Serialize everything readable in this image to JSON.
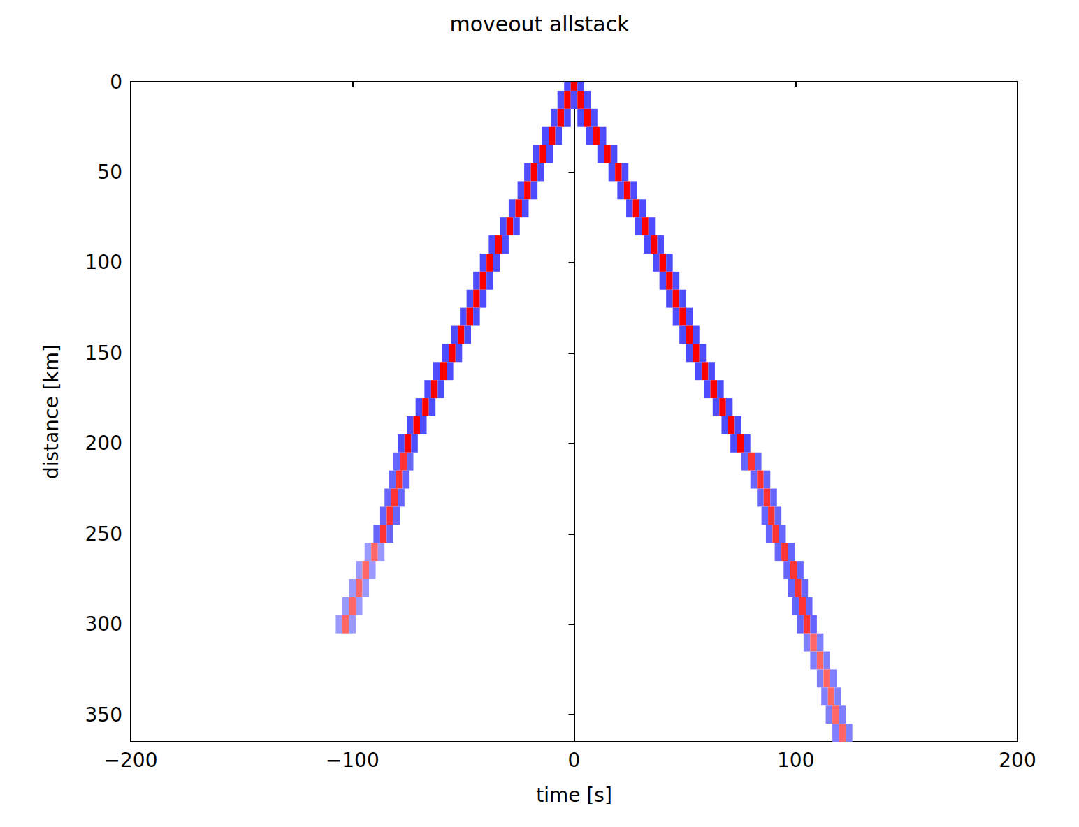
{
  "chart_data": {
    "type": "heatmap",
    "title": "moveout allstack",
    "x_label": "time [s]",
    "y_label": "distance [km]",
    "xlim": [
      -200,
      200
    ],
    "xticks": [
      -200,
      -100,
      0,
      100,
      200
    ],
    "ylim": [
      0,
      365
    ],
    "yticks": [
      0,
      50,
      100,
      150,
      200,
      250,
      300,
      350
    ],
    "grid": false,
    "color_range": [
      -1,
      1
    ],
    "cells": [
      [
        -3,
        0,
        -0.7
      ],
      [
        0,
        0,
        1
      ],
      [
        3,
        0,
        -0.7
      ],
      [
        -6,
        10,
        -0.7
      ],
      [
        -3,
        10,
        1
      ],
      [
        0,
        10,
        -0.7
      ],
      [
        0,
        10,
        -0.7
      ],
      [
        3,
        10,
        1
      ],
      [
        6,
        10,
        -0.7
      ],
      [
        -9,
        20,
        -0.7
      ],
      [
        -6,
        20,
        1
      ],
      [
        -3,
        20,
        -0.7
      ],
      [
        3,
        20,
        -0.7
      ],
      [
        6,
        20,
        1
      ],
      [
        9,
        20,
        -0.7
      ],
      [
        -13,
        30,
        -0.7
      ],
      [
        -10,
        30,
        1
      ],
      [
        -7,
        30,
        -0.7
      ],
      [
        7,
        30,
        -0.7
      ],
      [
        10,
        30,
        1
      ],
      [
        13,
        30,
        -0.7
      ],
      [
        -17,
        40,
        -0.7
      ],
      [
        -14,
        40,
        1
      ],
      [
        -11,
        40,
        -0.7
      ],
      [
        12,
        40,
        -0.7
      ],
      [
        15,
        40,
        1
      ],
      [
        18,
        40,
        -0.7
      ],
      [
        -21,
        50,
        -0.7
      ],
      [
        -18,
        50,
        1
      ],
      [
        -15,
        50,
        -0.7
      ],
      [
        17,
        50,
        -0.7
      ],
      [
        20,
        50,
        1
      ],
      [
        23,
        50,
        -0.7
      ],
      [
        -24,
        60,
        -0.7
      ],
      [
        -21,
        60,
        1
      ],
      [
        -18,
        60,
        -0.7
      ],
      [
        21,
        60,
        -0.7
      ],
      [
        24,
        60,
        1
      ],
      [
        27,
        60,
        -0.7
      ],
      [
        -28,
        70,
        -0.7
      ],
      [
        -25,
        70,
        1
      ],
      [
        -22,
        70,
        -0.7
      ],
      [
        25,
        70,
        -0.7
      ],
      [
        28,
        70,
        1
      ],
      [
        31,
        70,
        -0.7
      ],
      [
        -32,
        80,
        -0.7
      ],
      [
        -29,
        80,
        1
      ],
      [
        -26,
        80,
        -0.7
      ],
      [
        29,
        80,
        -0.7
      ],
      [
        32,
        80,
        1
      ],
      [
        35,
        80,
        -0.7
      ],
      [
        -37,
        90,
        -0.7
      ],
      [
        -34,
        90,
        1
      ],
      [
        -31,
        90,
        -0.7
      ],
      [
        33,
        90,
        -0.7
      ],
      [
        36,
        90,
        1
      ],
      [
        39,
        90,
        -0.7
      ],
      [
        -41,
        100,
        -0.7
      ],
      [
        -38,
        100,
        1
      ],
      [
        -35,
        100,
        -0.7
      ],
      [
        37,
        100,
        -0.7
      ],
      [
        40,
        100,
        1
      ],
      [
        43,
        100,
        -0.7
      ],
      [
        -44,
        110,
        -0.7
      ],
      [
        -41,
        110,
        1
      ],
      [
        -38,
        110,
        -0.7
      ],
      [
        40,
        110,
        -0.7
      ],
      [
        43,
        110,
        1
      ],
      [
        46,
        110,
        -0.7
      ],
      [
        -47,
        120,
        -0.7
      ],
      [
        -44,
        120,
        1
      ],
      [
        -41,
        120,
        -0.7
      ],
      [
        43,
        120,
        -0.7
      ],
      [
        46,
        120,
        1
      ],
      [
        49,
        120,
        -0.7
      ],
      [
        -50,
        130,
        -0.7
      ],
      [
        -47,
        130,
        1
      ],
      [
        -44,
        130,
        -0.7
      ],
      [
        46,
        130,
        -0.7
      ],
      [
        49,
        130,
        1
      ],
      [
        52,
        130,
        -0.7
      ],
      [
        -54,
        140,
        -0.7
      ],
      [
        -51,
        140,
        1
      ],
      [
        -48,
        140,
        -0.7
      ],
      [
        49,
        140,
        -0.7
      ],
      [
        52,
        140,
        1
      ],
      [
        55,
        140,
        -0.7
      ],
      [
        -58,
        150,
        -0.7
      ],
      [
        -55,
        150,
        1
      ],
      [
        -52,
        150,
        -0.7
      ],
      [
        52,
        150,
        -0.7
      ],
      [
        55,
        150,
        1
      ],
      [
        58,
        150,
        -0.7
      ],
      [
        -62,
        160,
        -0.7
      ],
      [
        -59,
        160,
        1
      ],
      [
        -56,
        160,
        -0.7
      ],
      [
        56,
        160,
        -0.7
      ],
      [
        59,
        160,
        1
      ],
      [
        62,
        160,
        -0.7
      ],
      [
        -66,
        170,
        -0.7
      ],
      [
        -63,
        170,
        1
      ],
      [
        -60,
        170,
        -0.7
      ],
      [
        60,
        170,
        -0.7
      ],
      [
        63,
        170,
        1
      ],
      [
        66,
        170,
        -0.7
      ],
      [
        -70,
        180,
        -0.7
      ],
      [
        -67,
        180,
        1
      ],
      [
        -64,
        180,
        -0.7
      ],
      [
        64,
        180,
        -0.7
      ],
      [
        67,
        180,
        1
      ],
      [
        70,
        180,
        -0.7
      ],
      [
        -74,
        190,
        -0.7
      ],
      [
        -71,
        190,
        1
      ],
      [
        -68,
        190,
        -0.7
      ],
      [
        68,
        190,
        -0.7
      ],
      [
        71,
        190,
        1
      ],
      [
        74,
        190,
        -0.7
      ],
      [
        -78,
        200,
        -0.7
      ],
      [
        -75,
        200,
        1
      ],
      [
        -72,
        200,
        -0.7
      ],
      [
        72,
        200,
        -0.7
      ],
      [
        75,
        200,
        1
      ],
      [
        78,
        200,
        -0.7
      ],
      [
        -80,
        210,
        -0.6
      ],
      [
        -77,
        210,
        0.8
      ],
      [
        -74,
        210,
        -0.6
      ],
      [
        77,
        210,
        -0.6
      ],
      [
        80,
        210,
        0.8
      ],
      [
        83,
        210,
        -0.6
      ],
      [
        -82,
        220,
        -0.6
      ],
      [
        -79,
        220,
        0.8
      ],
      [
        -76,
        220,
        -0.6
      ],
      [
        81,
        220,
        -0.6
      ],
      [
        84,
        220,
        0.8
      ],
      [
        87,
        220,
        -0.6
      ],
      [
        -84,
        230,
        -0.6
      ],
      [
        -81,
        230,
        0.8
      ],
      [
        -78,
        230,
        -0.6
      ],
      [
        84,
        230,
        -0.6
      ],
      [
        87,
        230,
        0.8
      ],
      [
        90,
        230,
        -0.6
      ],
      [
        -86,
        240,
        -0.6
      ],
      [
        -83,
        240,
        0.8
      ],
      [
        -80,
        240,
        -0.6
      ],
      [
        86,
        240,
        -0.6
      ],
      [
        89,
        240,
        0.8
      ],
      [
        92,
        240,
        -0.6
      ],
      [
        -89,
        250,
        -0.6
      ],
      [
        -86,
        250,
        0.8
      ],
      [
        -83,
        250,
        -0.6
      ],
      [
        88,
        250,
        -0.6
      ],
      [
        91,
        250,
        0.8
      ],
      [
        94,
        250,
        -0.6
      ],
      [
        -93,
        260,
        -0.4
      ],
      [
        -90,
        260,
        0.6
      ],
      [
        -87,
        260,
        -0.4
      ],
      [
        92,
        260,
        -0.6
      ],
      [
        95,
        260,
        0.8
      ],
      [
        98,
        260,
        -0.6
      ],
      [
        -97,
        270,
        -0.4
      ],
      [
        -94,
        270,
        0.6
      ],
      [
        -91,
        270,
        -0.4
      ],
      [
        96,
        270,
        -0.6
      ],
      [
        99,
        270,
        0.8
      ],
      [
        102,
        270,
        -0.6
      ],
      [
        -100,
        280,
        -0.4
      ],
      [
        -97,
        280,
        0.6
      ],
      [
        -94,
        280,
        -0.4
      ],
      [
        98,
        280,
        -0.6
      ],
      [
        101,
        280,
        0.8
      ],
      [
        104,
        280,
        -0.6
      ],
      [
        -103,
        290,
        -0.4
      ],
      [
        -100,
        290,
        0.6
      ],
      [
        -97,
        290,
        -0.4
      ],
      [
        100,
        290,
        -0.6
      ],
      [
        103,
        290,
        0.8
      ],
      [
        106,
        290,
        -0.6
      ],
      [
        -106,
        300,
        -0.4
      ],
      [
        -103,
        300,
        0.6
      ],
      [
        -100,
        300,
        -0.4
      ],
      [
        102,
        300,
        -0.6
      ],
      [
        105,
        300,
        0.8
      ],
      [
        108,
        300,
        -0.6
      ],
      [
        105,
        310,
        -0.5
      ],
      [
        108,
        310,
        0.6
      ],
      [
        111,
        310,
        -0.5
      ],
      [
        108,
        320,
        -0.5
      ],
      [
        111,
        320,
        0.6
      ],
      [
        114,
        320,
        -0.5
      ],
      [
        111,
        330,
        -0.5
      ],
      [
        114,
        330,
        0.6
      ],
      [
        117,
        330,
        -0.5
      ],
      [
        113,
        340,
        -0.5
      ],
      [
        116,
        340,
        0.6
      ],
      [
        119,
        340,
        -0.5
      ],
      [
        115,
        350,
        -0.5
      ],
      [
        118,
        350,
        0.6
      ],
      [
        121,
        350,
        -0.5
      ],
      [
        118,
        360,
        -0.5
      ],
      [
        121,
        360,
        0.6
      ],
      [
        124,
        360,
        -0.5
      ]
    ]
  }
}
